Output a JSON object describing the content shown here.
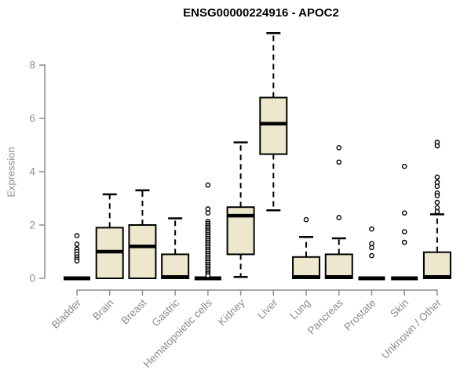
{
  "chart_data": {
    "type": "boxplot",
    "title": "ENSG00000224916 - APOC2",
    "ylabel": "Expression",
    "xlabel": "",
    "ylim": [
      0,
      9.3
    ],
    "yticks": [
      0,
      2,
      4,
      6,
      8
    ],
    "grid": false,
    "legend": "none",
    "colors": {
      "box_fill": "#EDE8CD",
      "box_stroke": "#000000",
      "median": "#000000",
      "whisker": "#000000",
      "axis": "#8C8C8C",
      "title": "#000000",
      "background": "#FFFFFF"
    },
    "categories": [
      "Bladder",
      "Brain",
      "Breast",
      "Gastric",
      "Hematopoietic cells",
      "Kidney",
      "Liver",
      "Lung",
      "Pancreas",
      "Prostate",
      "Skin",
      "Unknown / Other"
    ],
    "series": [
      {
        "category": "Bladder",
        "low": 0,
        "q1": 0,
        "median": 0,
        "q3": 0,
        "high": 0,
        "outliers": [
          1.6,
          1.28,
          1.1,
          1.0,
          0.9,
          0.8,
          0.72,
          0.65
        ]
      },
      {
        "category": "Brain",
        "low": 0,
        "q1": 0,
        "median": 1.0,
        "q3": 1.9,
        "high": 3.15,
        "outliers": []
      },
      {
        "category": "Breast",
        "low": 0,
        "q1": 0,
        "median": 1.2,
        "q3": 2.0,
        "high": 3.3,
        "outliers": []
      },
      {
        "category": "Gastric",
        "low": 0,
        "q1": 0,
        "median": 0.05,
        "q3": 0.9,
        "high": 2.25,
        "outliers": []
      },
      {
        "category": "Hematopoietic cells",
        "low": 0,
        "q1": 0,
        "median": 0,
        "q3": 0,
        "high": 0,
        "outliers": [
          3.5,
          2.6,
          2.45,
          2.13,
          2.06,
          1.99,
          1.92,
          1.85,
          1.78,
          1.71,
          1.64,
          1.57,
          1.5,
          1.43,
          1.36,
          1.29,
          1.22,
          1.15,
          1.08,
          1.01,
          0.94,
          0.87,
          0.8,
          0.73,
          0.66,
          0.59,
          0.52,
          0.45,
          0.38,
          0.31,
          0.24,
          0.17,
          0.1
        ]
      },
      {
        "category": "Kidney",
        "low": 0.05,
        "q1": 0.9,
        "median": 2.35,
        "q3": 2.67,
        "high": 5.1,
        "outliers": []
      },
      {
        "category": "Liver",
        "low": 2.55,
        "q1": 4.66,
        "median": 5.8,
        "q3": 6.78,
        "high": 9.2,
        "outliers": []
      },
      {
        "category": "Lung",
        "low": 0,
        "q1": 0,
        "median": 0.05,
        "q3": 0.8,
        "high": 1.55,
        "outliers": [
          2.2
        ]
      },
      {
        "category": "Pancreas",
        "low": 0,
        "q1": 0,
        "median": 0.05,
        "q3": 0.9,
        "high": 1.5,
        "outliers": [
          4.9,
          4.36,
          2.28
        ]
      },
      {
        "category": "Prostate",
        "low": 0,
        "q1": 0,
        "median": 0,
        "q3": 0,
        "high": 0,
        "outliers": [
          1.85,
          1.3,
          1.15,
          0.85
        ]
      },
      {
        "category": "Skin",
        "low": 0,
        "q1": 0,
        "median": 0,
        "q3": 0,
        "high": 0,
        "outliers": [
          4.2,
          2.45,
          1.75,
          1.35
        ]
      },
      {
        "category": "Unknown / Other",
        "low": 0,
        "q1": 0,
        "median": 0.05,
        "q3": 0.98,
        "high": 2.4,
        "outliers": [
          5.1,
          4.97,
          3.8,
          3.6,
          3.45,
          3.2,
          3.1,
          2.85,
          2.65,
          2.5
        ]
      }
    ]
  }
}
